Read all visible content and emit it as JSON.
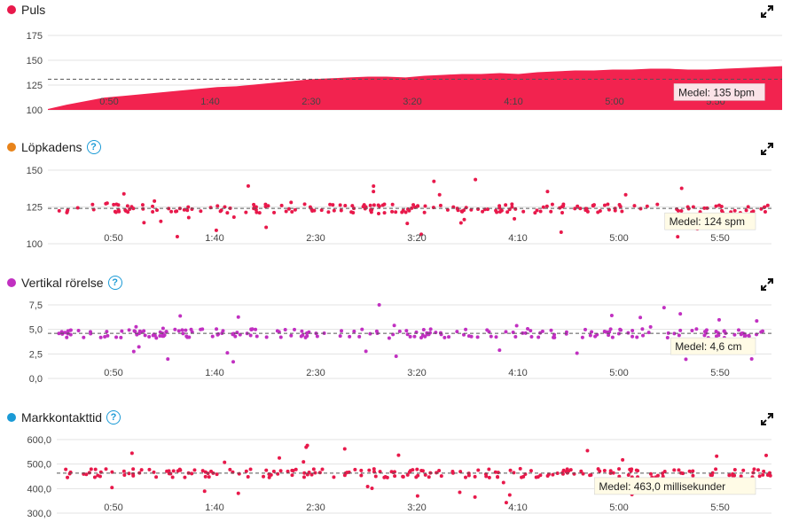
{
  "panels": [
    {
      "id": "puls",
      "title": "Puls",
      "has_help": false,
      "color": "#e8194b"
    },
    {
      "id": "kadens",
      "title": "Löpkadens",
      "has_help": true,
      "color": "#e8831a"
    },
    {
      "id": "vert",
      "title": "Vertikal rörelse",
      "has_help": true,
      "color": "#c130c1"
    },
    {
      "id": "gct",
      "title": "Markkontakttid",
      "has_help": true,
      "color": "#1a9ad6"
    }
  ],
  "chart_data": [
    {
      "type": "area",
      "title": "Puls",
      "x_ticks": [
        "0:50",
        "1:40",
        "2:30",
        "3:20",
        "4:10",
        "5:00",
        "5:50"
      ],
      "y_ticks": [
        "175",
        "150",
        "125",
        "100"
      ],
      "ylim": [
        100,
        185
      ],
      "average_label": "Medel: 135 bpm",
      "average": 135,
      "x": [
        0,
        10,
        20,
        30,
        40,
        50,
        60,
        70,
        80,
        90,
        100,
        110,
        120,
        130,
        140,
        150,
        160,
        170,
        180,
        190,
        200,
        210,
        220,
        230,
        240,
        250,
        260,
        270,
        280,
        290,
        300,
        310,
        320,
        330,
        340,
        350,
        360,
        370,
        380,
        390
      ],
      "values": [
        101,
        106,
        110,
        114,
        116,
        118,
        120,
        122,
        124,
        126,
        127,
        129,
        131,
        133,
        135,
        136,
        137,
        138,
        138,
        137,
        139,
        140,
        141,
        141,
        142,
        141,
        143,
        144,
        145,
        145,
        146,
        146,
        147,
        147,
        146,
        146,
        147,
        148,
        149,
        150
      ],
      "color": "#f2234f",
      "grid": true
    },
    {
      "type": "scatter",
      "title": "Löpkadens",
      "x_ticks": [
        "0:50",
        "1:40",
        "2:30",
        "3:20",
        "4:10",
        "5:00",
        "5:50"
      ],
      "y_ticks": [
        "150",
        "125",
        "100"
      ],
      "ylim": [
        100,
        150
      ],
      "average_label": "Medel: 124 spm",
      "average": 124,
      "color": "#e8194b",
      "grid": true
    },
    {
      "type": "scatter",
      "title": "Vertikal rörelse",
      "x_ticks": [
        "0:50",
        "1:40",
        "2:30",
        "3:20",
        "4:10",
        "5:00",
        "5:50"
      ],
      "y_ticks": [
        "7,5",
        "5,0",
        "2,5",
        "0,0"
      ],
      "ylim": [
        0,
        7.5
      ],
      "average_label": "Medel: 4,6 cm",
      "average": 4.6,
      "color": "#c130c1",
      "grid": true
    },
    {
      "type": "scatter",
      "title": "Markkontakttid",
      "x_ticks": [
        "0:50",
        "1:40",
        "2:30",
        "3:20",
        "4:10",
        "5:00",
        "5:50"
      ],
      "y_ticks": [
        "600,0",
        "500,0",
        "400,0",
        "300,0"
      ],
      "ylim": [
        300,
        600
      ],
      "average_label": "Medel: 463,0 millisekunder",
      "average": 463,
      "color": "#e8194b",
      "grid": true
    }
  ]
}
